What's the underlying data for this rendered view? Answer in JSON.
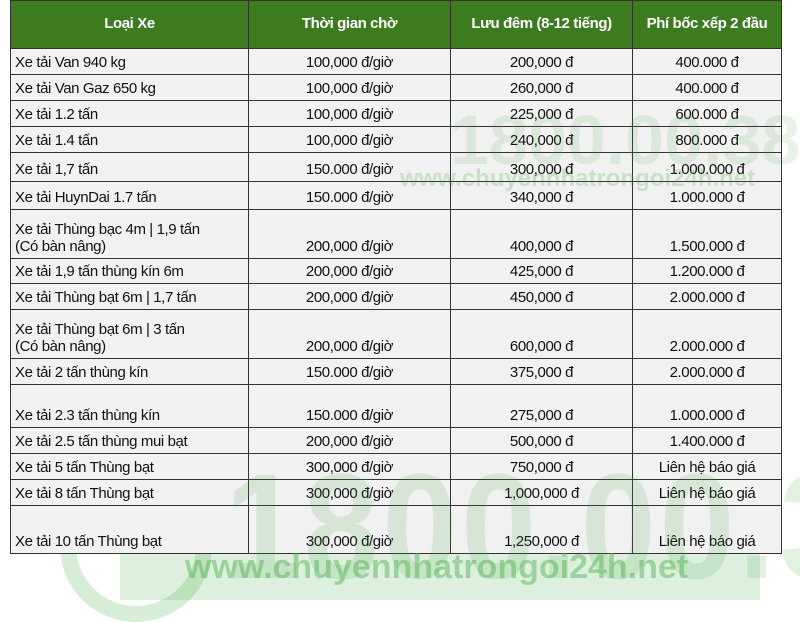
{
  "table": {
    "headers": [
      "Loại Xe",
      "Thời gian chờ",
      "Lưu đêm (8-12 tiếng)",
      "Phí bốc xếp 2 đầu"
    ],
    "rows": [
      [
        "Xe tải Van 940 kg",
        "100,000 đ/giờ",
        "200,000 đ",
        "400.000 đ"
      ],
      [
        "Xe tải Van Gaz 650 kg",
        "100,000 đ/giờ",
        "260,000 đ",
        "400.000 đ"
      ],
      [
        "Xe tải 1.2 tấn",
        "100,000 đ/giờ",
        "225,000 đ",
        "600.000 đ"
      ],
      [
        "Xe tải 1.4 tấn",
        "100,000 đ/giờ",
        "240,000 đ",
        "800.000 đ"
      ],
      [
        "Xe tải 1,7 tấn",
        "150.000 đ/giờ",
        "300,000 đ",
        "1.000.000 đ"
      ],
      [
        "Xe tải HuynDai 1.7 tấn",
        "150.000 đ/giờ",
        "340,000 đ",
        "1.000.000 đ"
      ],
      [
        "Xe tải Thùng bạc 4m | 1,9 tấn\n(Có bàn nâng)",
        "200,000 đ/giờ",
        "400,000 đ",
        "1.500.000 đ"
      ],
      [
        "Xe tải 1,9 tấn thùng kín 6m",
        "200,000 đ/giờ",
        "425,000 đ",
        "1.200.000 đ"
      ],
      [
        "Xe tải Thùng bạt 6m | 1,7 tấn",
        "200,000 đ/giờ",
        "450,000 đ",
        "2.000.000 đ"
      ],
      [
        "Xe tải Thùng bạt 6m | 3 tấn\n(Có bàn nâng)",
        "200,000 đ/giờ",
        "600,000 đ",
        "2.000.000 đ"
      ],
      [
        "Xe tải 2 tấn thùng kín",
        "150.000 đ/giờ",
        "375,000 đ",
        "2.000.000 đ"
      ],
      [
        "Xe tải 2.3 tấn thùng kín",
        "150.000 đ/giờ",
        "275,000 đ",
        "1.000.000 đ"
      ],
      [
        "Xe tải 2.5 tấn thùng mui bạt",
        "200,000 đ/giờ",
        "500,000 đ",
        "1.400.000 đ"
      ],
      [
        "Xe tải 5 tấn Thùng bạt",
        "300,000 đ/giờ",
        "750,000 đ",
        "Liên hệ báo giá"
      ],
      [
        "Xe tải 8 tấn Thùng bạt",
        "300,000 đ/giờ",
        "1,000,000 đ",
        "Liên hệ báo giá"
      ],
      [
        "Xe tải 10 tấn Thùng bạt",
        "300,000 đ/giờ",
        "1,250,000 đ",
        "Liên hệ báo giá"
      ]
    ]
  },
  "watermark": {
    "phone": "1800.00.38",
    "website": "www.chuyennhatrongoi24h.net"
  },
  "colors": {
    "header_bg": "#3d7b1f",
    "row_bg": "#f1f1f1",
    "watermark": "#3aa13a"
  }
}
